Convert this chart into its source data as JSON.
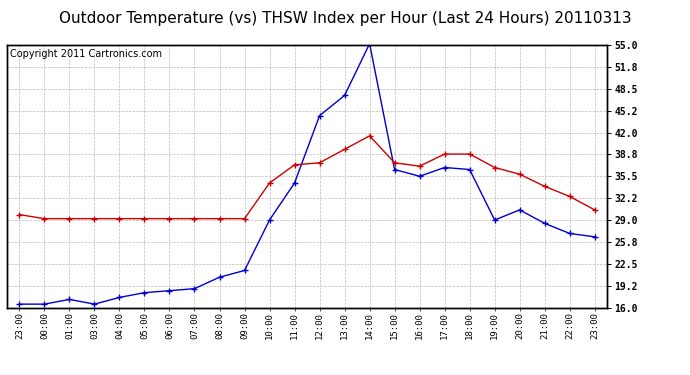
{
  "title": "Outdoor Temperature (vs) THSW Index per Hour (Last 24 Hours) 20110313",
  "copyright": "Copyright 2011 Cartronics.com",
  "x_labels": [
    "23:00",
    "00:00",
    "01:00",
    "03:00",
    "04:00",
    "05:00",
    "06:00",
    "07:00",
    "08:00",
    "09:00",
    "10:00",
    "11:00",
    "12:00",
    "13:00",
    "14:00",
    "15:00",
    "16:00",
    "17:00",
    "18:00",
    "19:00",
    "20:00",
    "21:00",
    "22:00",
    "23:00"
  ],
  "ylim": [
    16.0,
    55.0
  ],
  "yticks": [
    16.0,
    19.2,
    22.5,
    25.8,
    29.0,
    32.2,
    35.5,
    38.8,
    42.0,
    45.2,
    48.5,
    51.8,
    55.0
  ],
  "blue_data": [
    16.5,
    16.5,
    17.2,
    16.5,
    17.5,
    18.2,
    18.5,
    18.8,
    20.5,
    21.5,
    29.0,
    34.5,
    44.5,
    47.5,
    55.2,
    36.5,
    35.5,
    36.8,
    36.5,
    29.0,
    30.5,
    28.5,
    27.0,
    26.5
  ],
  "red_data": [
    29.8,
    29.2,
    29.2,
    29.2,
    29.2,
    29.2,
    29.2,
    29.2,
    29.2,
    29.2,
    34.5,
    37.2,
    37.5,
    39.5,
    41.5,
    37.5,
    37.0,
    38.8,
    38.8,
    36.8,
    35.8,
    34.0,
    32.5,
    30.5
  ],
  "blue_color": "#0000cc",
  "red_color": "#cc0000",
  "bg_color": "#ffffff",
  "grid_color": "#aaaaaa",
  "title_fontsize": 11,
  "copyright_fontsize": 7
}
